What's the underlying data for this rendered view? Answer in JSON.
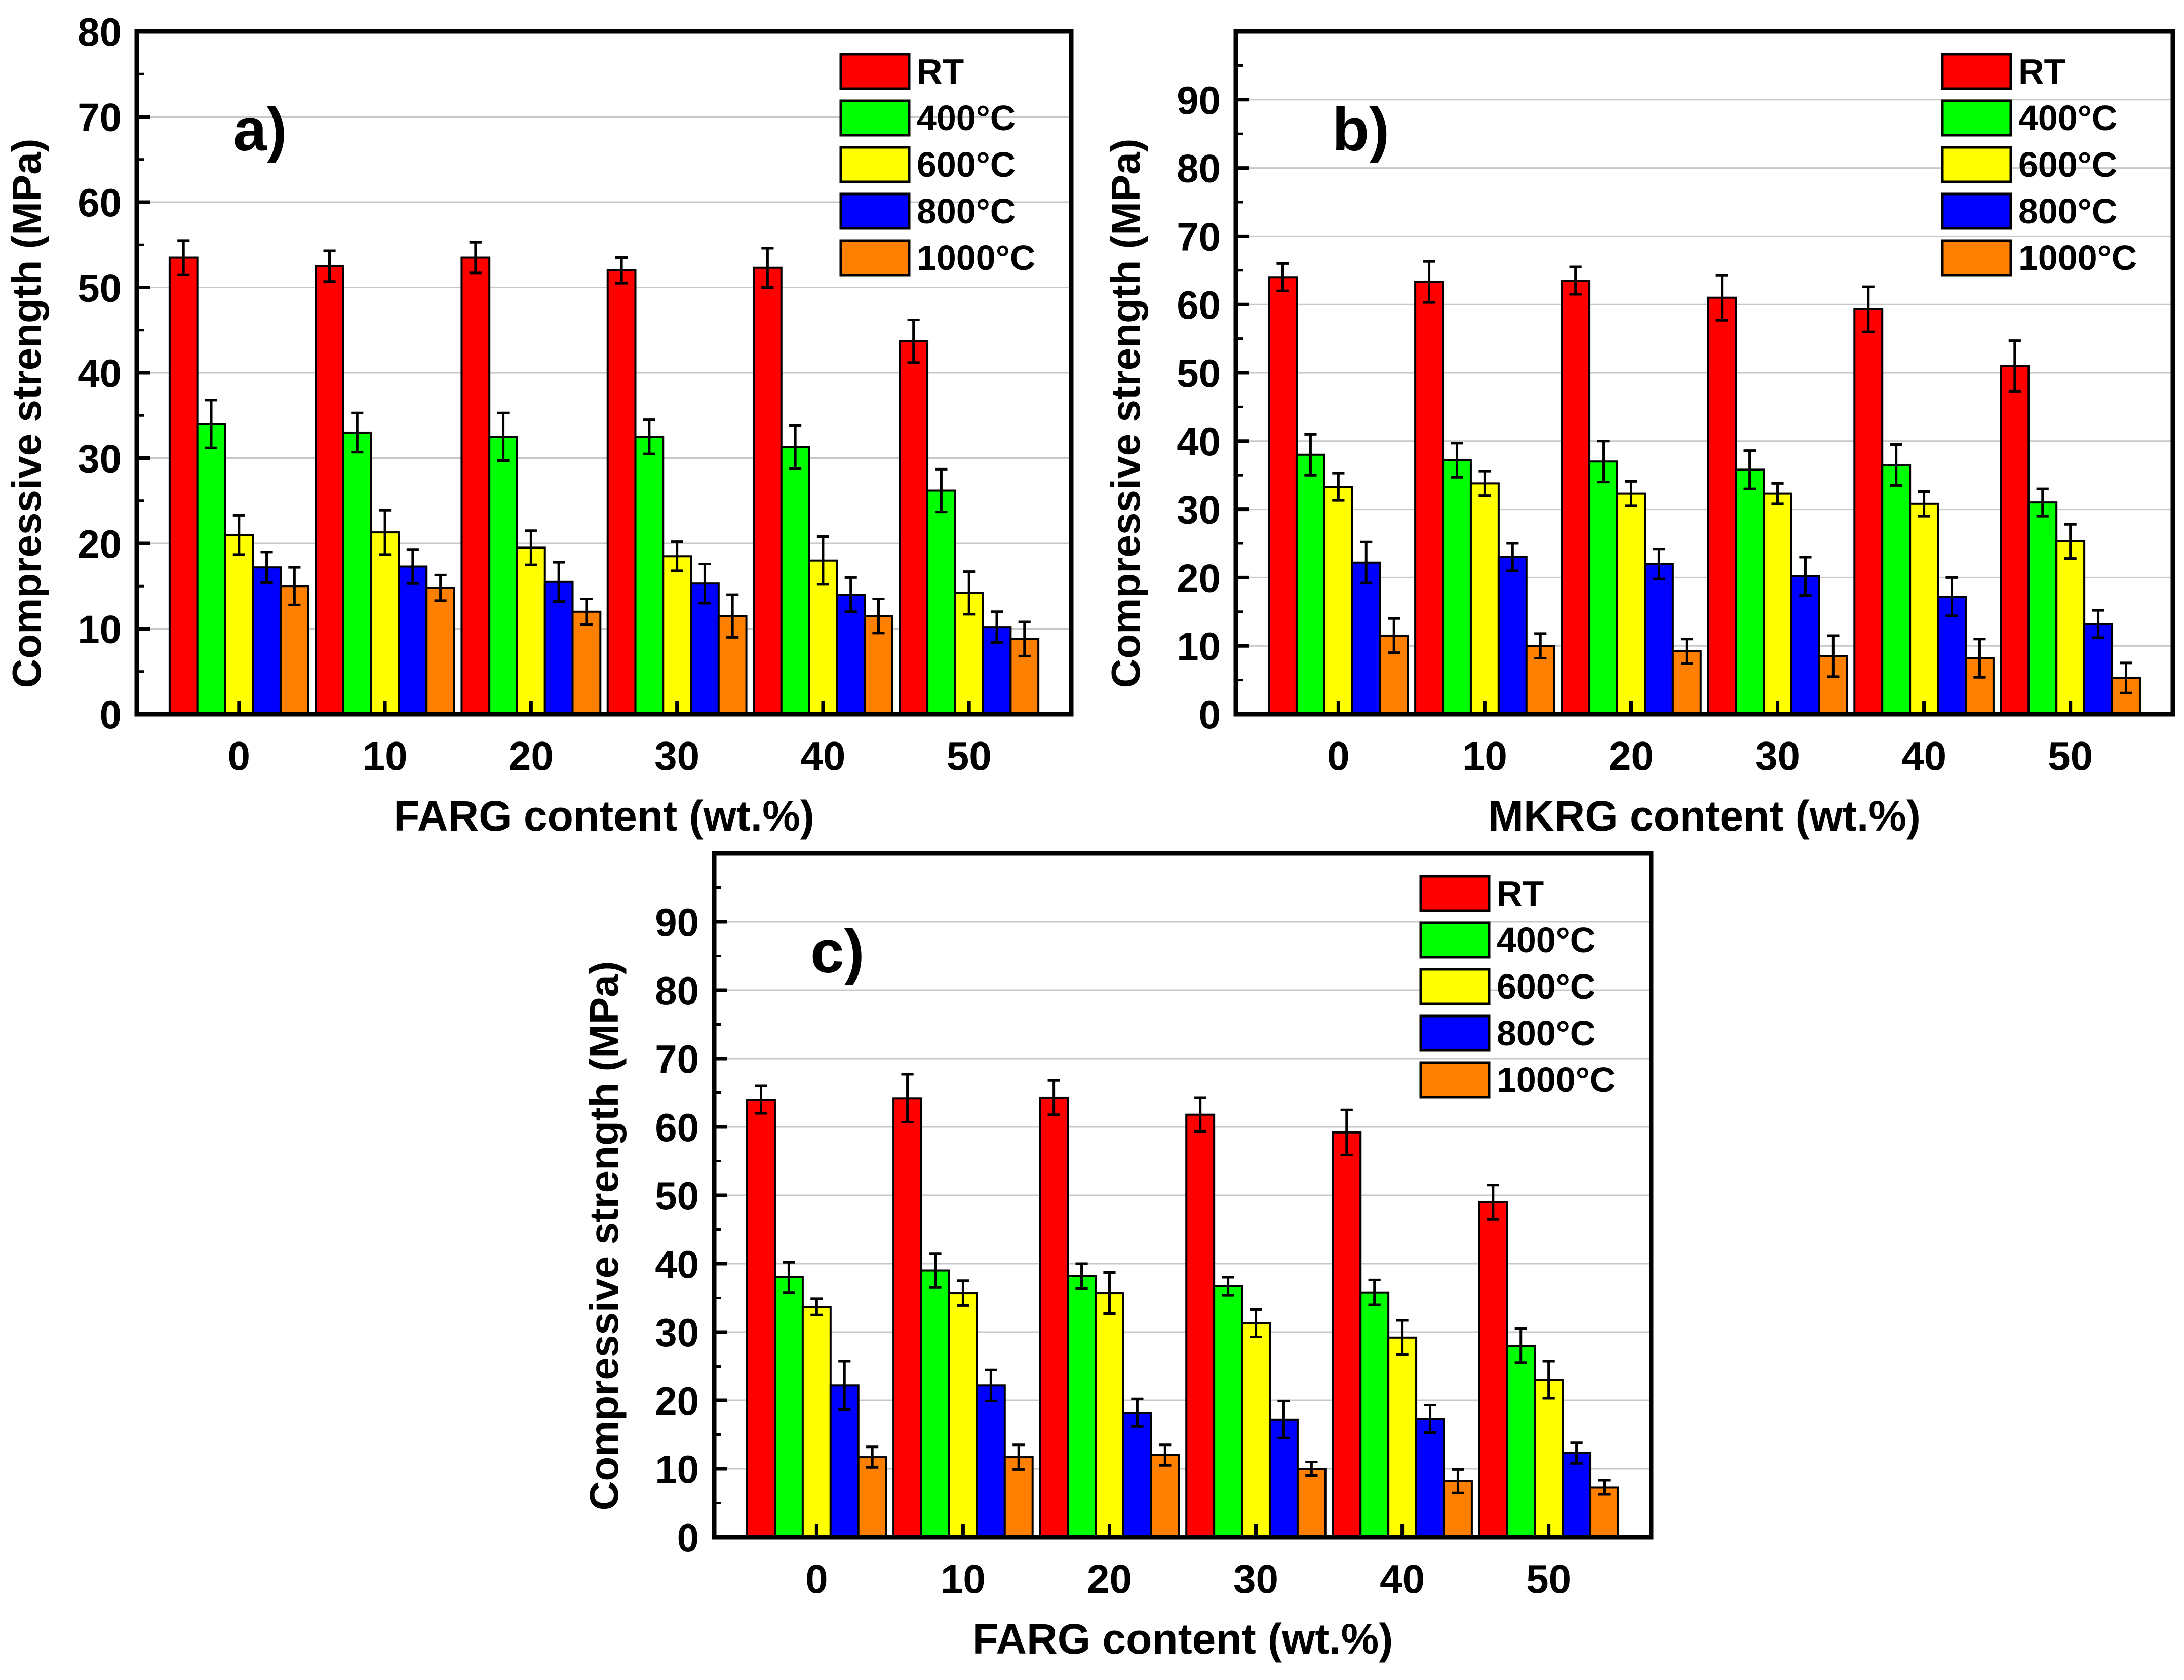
{
  "chart_data": [
    {
      "type": "bar",
      "panel_label": "a)",
      "xlabel": "FARG content (wt.%)",
      "ylabel": "Compressive strength (MPa)",
      "ylim": [
        0,
        80
      ],
      "yticks": [
        0,
        10,
        20,
        30,
        40,
        50,
        60,
        70,
        80
      ],
      "grid": true,
      "legend_position": "top-right",
      "categories": [
        "0",
        "10",
        "20",
        "30",
        "40",
        "50"
      ],
      "series": [
        {
          "name": "RT",
          "color": "#ff0000",
          "values": [
            53.5,
            52.5,
            53.5,
            52,
            52.3,
            43.7
          ],
          "errors": [
            2,
            1.8,
            1.8,
            1.5,
            2.3,
            2.5
          ]
        },
        {
          "name": "400°C",
          "color": "#00ff00",
          "values": [
            34,
            33,
            32.5,
            32.5,
            31.3,
            26.2
          ],
          "errors": [
            2.8,
            2.3,
            2.8,
            2,
            2.5,
            2.5
          ]
        },
        {
          "name": "600°C",
          "color": "#ffff00",
          "values": [
            21,
            21.3,
            19.5,
            18.5,
            18,
            14.2
          ],
          "errors": [
            2.3,
            2.6,
            2,
            1.7,
            2.8,
            2.5
          ]
        },
        {
          "name": "800°C",
          "color": "#0000ff",
          "values": [
            17.2,
            17.3,
            15.5,
            15.3,
            14,
            10.2
          ],
          "errors": [
            1.8,
            2,
            2.3,
            2.3,
            2,
            1.8
          ]
        },
        {
          "name": "1000°C",
          "color": "#ff8000",
          "values": [
            15,
            14.8,
            12,
            11.5,
            11.5,
            8.8
          ],
          "errors": [
            2.2,
            1.5,
            1.5,
            2.5,
            2,
            2
          ]
        }
      ]
    },
    {
      "type": "bar",
      "panel_label": "b)",
      "xlabel": "MKRG content (wt.%)",
      "ylabel": "Compressive strength (MPa)",
      "ylim": [
        0,
        100
      ],
      "yticks": [
        0,
        10,
        20,
        30,
        40,
        50,
        60,
        70,
        80,
        90
      ],
      "grid": true,
      "legend_position": "top-right",
      "categories": [
        "0",
        "10",
        "20",
        "30",
        "40",
        "50"
      ],
      "series": [
        {
          "name": "RT",
          "color": "#ff0000",
          "values": [
            64,
            63.3,
            63.5,
            61,
            59.3,
            51
          ],
          "errors": [
            2,
            3,
            2,
            3.3,
            3.3,
            3.7
          ]
        },
        {
          "name": "400°C",
          "color": "#00ff00",
          "values": [
            38,
            37.2,
            37,
            35.8,
            36.5,
            31
          ],
          "errors": [
            3,
            2.5,
            3,
            2.8,
            3,
            2
          ]
        },
        {
          "name": "600°C",
          "color": "#ffff00",
          "values": [
            33.3,
            33.8,
            32.3,
            32.3,
            30.8,
            25.3
          ],
          "errors": [
            2,
            1.8,
            1.8,
            1.5,
            1.8,
            2.5
          ]
        },
        {
          "name": "800°C",
          "color": "#0000ff",
          "values": [
            22.2,
            23,
            22,
            20.2,
            17.2,
            13.2
          ],
          "errors": [
            3,
            2,
            2.2,
            2.8,
            2.8,
            2
          ]
        },
        {
          "name": "1000°C",
          "color": "#ff8000",
          "values": [
            11.5,
            10,
            9.2,
            8.5,
            8.2,
            5.3
          ],
          "errors": [
            2.5,
            1.8,
            1.8,
            3,
            2.8,
            2.2
          ]
        }
      ]
    },
    {
      "type": "bar",
      "panel_label": "c)",
      "xlabel": "FARG content (wt.%)",
      "ylabel": "Compressive strength (MPa)",
      "ylim": [
        0,
        100
      ],
      "yticks": [
        0,
        10,
        20,
        30,
        40,
        50,
        60,
        70,
        80,
        90
      ],
      "grid": true,
      "legend_position": "top-right",
      "categories": [
        "0",
        "10",
        "20",
        "30",
        "40",
        "50"
      ],
      "series": [
        {
          "name": "RT",
          "color": "#ff0000",
          "values": [
            64,
            64.2,
            64.3,
            61.8,
            59.2,
            49
          ],
          "errors": [
            2,
            3.5,
            2.5,
            2.5,
            3.3,
            2.5
          ]
        },
        {
          "name": "400°C",
          "color": "#00ff00",
          "values": [
            38,
            39,
            38.2,
            36.7,
            35.8,
            28
          ],
          "errors": [
            2.2,
            2.5,
            1.8,
            1.3,
            1.8,
            2.5
          ]
        },
        {
          "name": "600°C",
          "color": "#ffff00",
          "values": [
            33.7,
            35.7,
            35.7,
            31.3,
            29.2,
            23
          ],
          "errors": [
            1.2,
            1.8,
            3,
            2,
            2.5,
            2.7
          ]
        },
        {
          "name": "800°C",
          "color": "#0000ff",
          "values": [
            22.2,
            22.2,
            18.2,
            17.2,
            17.3,
            12.3
          ],
          "errors": [
            3.5,
            2.3,
            2,
            2.7,
            2,
            1.5
          ]
        },
        {
          "name": "1000°C",
          "color": "#ff8000",
          "values": [
            11.7,
            11.7,
            12,
            10,
            8.2,
            7.3
          ],
          "errors": [
            1.5,
            1.8,
            1.5,
            1,
            1.7,
            1
          ]
        }
      ]
    }
  ]
}
